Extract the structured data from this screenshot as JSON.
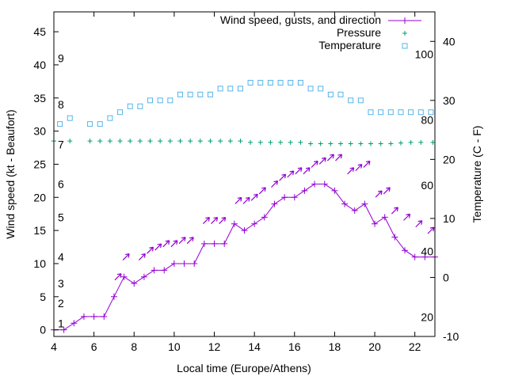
{
  "chart_data": {
    "type": "line",
    "xlabel": "Local time (Europe/Athens)",
    "ylabel": "Wind speed (kt - Beaufort)",
    "y2label": "Temperature (C - F)",
    "xlim": [
      4,
      23
    ],
    "ylim": [
      -1,
      48
    ],
    "y2lim": [
      -10,
      45
    ],
    "x_ticks": [
      4,
      6,
      8,
      10,
      12,
      14,
      16,
      18,
      20,
      22
    ],
    "y_ticks": [
      0,
      5,
      10,
      15,
      20,
      25,
      30,
      35,
      40,
      45
    ],
    "y2_ticks": [
      -10,
      0,
      10,
      20,
      30,
      40
    ],
    "beaufort_labels": [
      {
        "label": "1",
        "kt": 1
      },
      {
        "label": "2",
        "kt": 4
      },
      {
        "label": "3",
        "kt": 7
      },
      {
        "label": "4",
        "kt": 11
      },
      {
        "label": "5",
        "kt": 17
      },
      {
        "label": "6",
        "kt": 22
      },
      {
        "label": "7",
        "kt": 28
      },
      {
        "label": "8",
        "kt": 34
      },
      {
        "label": "9",
        "kt": 41
      }
    ],
    "fahrenheit_labels": [
      {
        "label": "20",
        "c": -6.7
      },
      {
        "label": "40",
        "c": 4.4
      },
      {
        "label": "60",
        "c": 15.6
      },
      {
        "label": "80",
        "c": 26.7
      },
      {
        "label": "100",
        "c": 37.8
      }
    ],
    "legend": {
      "position": "top-right"
    },
    "grid": false,
    "series": [
      {
        "name": "Wind speed, gusts, and direction",
        "color": "#9400d3",
        "x": [
          4.0,
          4.5,
          5.0,
          5.5,
          6.0,
          6.5,
          7.0,
          7.5,
          8.0,
          8.5,
          9.0,
          9.5,
          10.0,
          10.5,
          11.0,
          11.5,
          12.0,
          12.5,
          13.0,
          13.5,
          14.0,
          14.5,
          15.0,
          15.5,
          16.0,
          16.5,
          17.0,
          17.5,
          18.0,
          18.5,
          19.0,
          19.5,
          20.0,
          20.5,
          21.0,
          21.5,
          22.0,
          22.5,
          23.0
        ],
        "y": [
          0,
          0,
          1,
          2,
          2,
          2,
          5,
          8,
          7,
          8,
          9,
          9,
          10,
          10,
          10,
          13,
          13,
          13,
          16,
          15,
          16,
          17,
          19,
          20,
          20,
          21,
          22,
          22,
          21,
          19,
          18,
          19,
          16,
          17,
          14,
          12,
          11,
          11,
          11
        ],
        "gust_x": [
          7.2,
          7.6,
          8.4,
          8.8,
          9.2,
          9.6,
          10.0,
          10.4,
          10.8,
          11.6,
          12.0,
          12.4,
          13.2,
          13.6,
          14.0,
          14.4,
          15.0,
          15.4,
          15.8,
          16.2,
          16.6,
          17.0,
          17.4,
          17.8,
          18.2,
          18.8,
          19.2,
          19.6,
          20.2,
          20.6,
          21.0,
          21.6,
          22.2,
          22.8
        ],
        "gust_y": [
          8,
          11,
          11,
          12,
          12.5,
          13,
          13,
          13.5,
          13.5,
          16.5,
          16.5,
          16.5,
          19.5,
          19.5,
          20,
          21,
          22,
          23,
          23.5,
          24,
          24,
          25,
          25.5,
          26,
          26,
          24,
          24.5,
          25,
          20.5,
          21,
          18,
          17,
          16,
          15
        ]
      },
      {
        "name": "Pressure",
        "color": "#009e73",
        "x": [
          4.0,
          4.8,
          5.8,
          6.3,
          6.8,
          7.3,
          7.8,
          8.3,
          8.8,
          9.3,
          9.8,
          10.3,
          10.8,
          11.3,
          11.8,
          12.3,
          12.8,
          13.3,
          13.8,
          14.3,
          14.8,
          15.3,
          15.8,
          16.3,
          16.8,
          17.3,
          17.8,
          18.3,
          18.8,
          19.3,
          19.8,
          20.3,
          20.8,
          21.3,
          21.8,
          22.3,
          22.9
        ],
        "y": [
          28.5,
          28.5,
          28.5,
          28.5,
          28.5,
          28.5,
          28.5,
          28.5,
          28.5,
          28.5,
          28.5,
          28.5,
          28.5,
          28.5,
          28.5,
          28.5,
          28.5,
          28.5,
          28.3,
          28.3,
          28.3,
          28.3,
          28.3,
          28.3,
          28.1,
          28.1,
          28.1,
          28.1,
          28.1,
          28.1,
          28.1,
          28.1,
          28.1,
          28.2,
          28.3,
          28.3,
          28.3
        ]
      },
      {
        "name": "Temperature",
        "color": "#56b4e9",
        "x": [
          4.3,
          4.8,
          5.8,
          6.3,
          6.8,
          7.3,
          7.8,
          8.3,
          8.8,
          9.3,
          9.8,
          10.3,
          10.8,
          11.3,
          11.8,
          12.3,
          12.8,
          13.3,
          13.8,
          14.3,
          14.8,
          15.3,
          15.8,
          16.3,
          16.8,
          17.3,
          17.8,
          18.3,
          18.8,
          19.3,
          19.8,
          20.3,
          20.8,
          21.3,
          21.8,
          22.3,
          22.8
        ],
        "y": [
          26,
          27,
          26,
          26,
          27,
          28,
          29,
          29,
          30,
          30,
          30,
          31,
          31,
          31,
          31,
          32,
          32,
          32,
          33,
          33,
          33,
          33,
          33,
          33,
          32,
          32,
          31,
          31,
          30,
          30,
          28,
          28,
          28,
          28,
          28,
          28,
          28
        ]
      }
    ]
  }
}
